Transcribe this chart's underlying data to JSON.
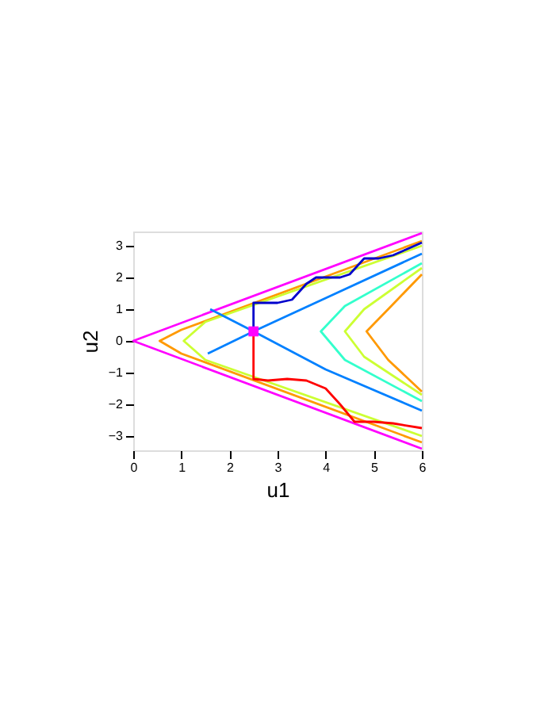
{
  "chart_data": {
    "type": "line",
    "xlabel": "u1",
    "ylabel": "u2",
    "xlim": [
      0,
      6
    ],
    "ylim": [
      -3.45,
      3.45
    ],
    "xticks": [
      0,
      1,
      2,
      3,
      4,
      5,
      6
    ],
    "yticks": [
      -3,
      -2,
      -1,
      0,
      1,
      2,
      3
    ],
    "grid": false,
    "series": [
      {
        "color": "#ff00ff",
        "x": [
          6,
          0,
          6
        ],
        "values": [
          3.4,
          0,
          -3.4
        ]
      },
      {
        "color": "#ff9900",
        "x": [
          6,
          1,
          0.55,
          1,
          6
        ],
        "values": [
          3.15,
          0.35,
          0,
          -0.4,
          -3.2
        ]
      },
      {
        "color": "#ccff33",
        "x": [
          6,
          1.5,
          1.05,
          1.5,
          6
        ],
        "values": [
          3.0,
          0.6,
          0,
          -0.6,
          -3.0
        ]
      },
      {
        "color": "#ff9900",
        "x": [
          6,
          5.3,
          4.85,
          5.3,
          6
        ],
        "values": [
          2.1,
          1.0,
          0.3,
          -0.6,
          -1.6
        ]
      },
      {
        "color": "#ccff33",
        "x": [
          6,
          4.8,
          4.4,
          4.8,
          6
        ],
        "values": [
          2.3,
          1.0,
          0.3,
          -0.5,
          -1.7
        ]
      },
      {
        "color": "#33ffcc",
        "x": [
          6,
          4.4,
          3.9,
          4.4,
          6
        ],
        "values": [
          2.45,
          1.1,
          0.3,
          -0.6,
          -1.9
        ]
      },
      {
        "color": "#0080ff",
        "x": [
          1.55,
          2.5,
          4,
          6
        ],
        "values": [
          -0.4,
          0.3,
          1.35,
          2.75
        ]
      },
      {
        "color": "#0080ff",
        "x": [
          1.6,
          2.5,
          4,
          6
        ],
        "values": [
          1.0,
          0.3,
          -0.9,
          -2.2
        ]
      },
      {
        "color": "#0000cc",
        "x": [
          2.5,
          2.5,
          3.0,
          3.3,
          3.6,
          3.8,
          4.3,
          4.5,
          4.8,
          5.1,
          5.4,
          5.7,
          6
        ],
        "values": [
          0.3,
          1.2,
          1.2,
          1.3,
          1.8,
          2.0,
          2.0,
          2.1,
          2.6,
          2.6,
          2.7,
          2.9,
          3.1
        ]
      },
      {
        "color": "#ff0000",
        "x": [
          2.5,
          2.5,
          2.8,
          3.2,
          3.6,
          4.0,
          4.3,
          4.6,
          5.0,
          5.4,
          6
        ],
        "values": [
          0.3,
          -1.2,
          -1.25,
          -1.2,
          -1.25,
          -1.5,
          -2.0,
          -2.55,
          -2.55,
          -2.6,
          -2.75
        ]
      },
      {
        "type": "scatter",
        "marker": "square",
        "color": "#ff00ff",
        "x": [
          2.5
        ],
        "values": [
          0.3
        ]
      }
    ]
  }
}
